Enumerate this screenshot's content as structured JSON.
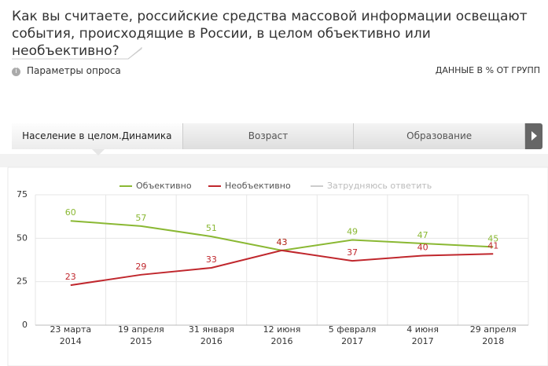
{
  "header": {
    "title": "Как вы считаете, российские средства массовой информации освещают события, происходящие в России, в целом объективно или необъективно?",
    "params": "Параметры опроса",
    "note": "ДАННЫЕ В % ОТ ГРУПП"
  },
  "tabs": [
    "Население в целом.Динамика",
    "Возраст",
    "Образование"
  ],
  "chart_data": {
    "type": "line",
    "categories": [
      "23 марта 2014",
      "19 апреля 2015",
      "31 января 2016",
      "12 июня 2016",
      "5 февраля 2017",
      "4 июня 2017",
      "29 апреля 2018"
    ],
    "series": [
      {
        "name": "Объективно",
        "color": "#8ab833",
        "values": [
          60,
          57,
          51,
          43,
          49,
          47,
          45
        ]
      },
      {
        "name": "Необъективно",
        "color": "#c0272d",
        "values": [
          23,
          29,
          33,
          43,
          37,
          40,
          41
        ]
      },
      {
        "name": "Затрудняюсь ответить",
        "color": "#cccccc",
        "values": [
          null,
          null,
          null,
          null,
          null,
          null,
          null
        ]
      }
    ],
    "ylim": [
      0,
      75
    ],
    "yticks": [
      0,
      25,
      50,
      75
    ],
    "grid": true,
    "legend": "top"
  }
}
